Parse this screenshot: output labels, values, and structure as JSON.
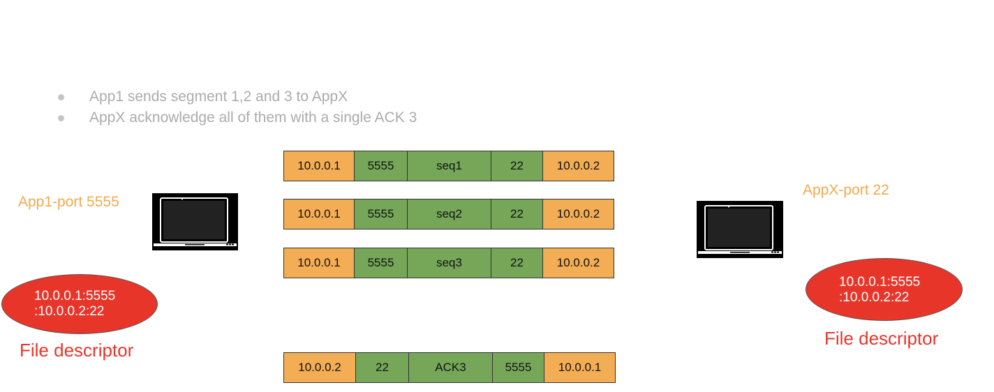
{
  "bullets": [
    "App1 sends segment 1,2 and 3 to AppX",
    "AppX acknowledge all of them with a single ACK 3"
  ],
  "left": {
    "app_label": "App1-port 5555",
    "fd_line1": "10.0.0.1:5555",
    "fd_line2": ":10.0.0.2:22",
    "fd_label": "File descriptor"
  },
  "right": {
    "app_label": "AppX-port 22",
    "fd_line1": "10.0.0.1:5555",
    "fd_line2": ":10.0.0.2:22",
    "fd_label": "File descriptor"
  },
  "packets": [
    {
      "src_ip": "10.0.0.1",
      "src_port": "5555",
      "payload": "seq1",
      "dst_port": "22",
      "dst_ip": "10.0.0.2"
    },
    {
      "src_ip": "10.0.0.1",
      "src_port": "5555",
      "payload": "seq2",
      "dst_port": "22",
      "dst_ip": "10.0.0.2"
    },
    {
      "src_ip": "10.0.0.1",
      "src_port": "5555",
      "payload": "seq3",
      "dst_port": "22",
      "dst_ip": "10.0.0.2"
    },
    {
      "src_ip": "10.0.0.2",
      "src_port": "22",
      "payload": "ACK3",
      "dst_port": "5555",
      "dst_ip": "10.0.0.1"
    }
  ],
  "colors": {
    "ip_field": "#f3ad54",
    "port_payload_field": "#76a759",
    "file_descriptor": "#e8352a",
    "app_label": "#f3a94c"
  }
}
